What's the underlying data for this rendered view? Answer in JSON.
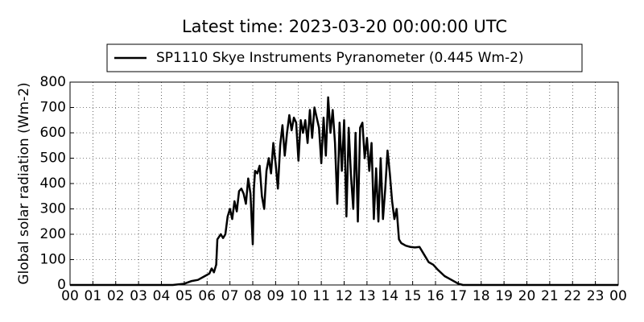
{
  "chart_data": {
    "type": "line",
    "title": "Latest time: 2023-03-20 00:00:00 UTC",
    "y_label": "Global solar radiation (Wm-2)",
    "x": [
      0,
      4.5,
      5,
      5.3,
      5.6,
      5.9,
      6.1,
      6.2,
      6.3,
      6.4,
      6.45,
      6.6,
      6.7,
      6.8,
      6.9,
      7.0,
      7.1,
      7.2,
      7.3,
      7.4,
      7.5,
      7.6,
      7.7,
      7.8,
      7.9,
      8.0,
      8.05,
      8.1,
      8.2,
      8.3,
      8.4,
      8.5,
      8.6,
      8.7,
      8.8,
      8.9,
      9.0,
      9.1,
      9.2,
      9.3,
      9.4,
      9.5,
      9.6,
      9.7,
      9.8,
      9.9,
      10.0,
      10.1,
      10.2,
      10.3,
      10.4,
      10.5,
      10.6,
      10.7,
      10.8,
      10.9,
      11.0,
      11.1,
      11.2,
      11.3,
      11.4,
      11.5,
      11.6,
      11.7,
      11.8,
      11.9,
      12.0,
      12.1,
      12.2,
      12.3,
      12.4,
      12.5,
      12.6,
      12.7,
      12.8,
      12.9,
      13.0,
      13.1,
      13.2,
      13.3,
      13.4,
      13.5,
      13.6,
      13.7,
      13.8,
      13.9,
      14.0,
      14.1,
      14.2,
      14.3,
      14.4,
      14.5,
      14.7,
      14.9,
      15.1,
      15.3,
      15.5,
      15.7,
      15.9,
      16.1,
      16.4,
      16.7,
      17.0,
      17.2,
      24
    ],
    "series": [
      {
        "name": "SP1110 Skye Instruments Pyranometer (0.445 Wm-2)",
        "color": "#000000",
        "values": [
          0,
          0,
          5,
          15,
          20,
          35,
          45,
          65,
          50,
          80,
          180,
          200,
          185,
          200,
          270,
          300,
          260,
          330,
          290,
          370,
          380,
          360,
          320,
          420,
          360,
          160,
          380,
          450,
          440,
          470,
          350,
          300,
          450,
          500,
          440,
          560,
          480,
          380,
          550,
          630,
          510,
          600,
          670,
          610,
          660,
          640,
          490,
          650,
          600,
          650,
          560,
          690,
          580,
          700,
          660,
          620,
          480,
          660,
          510,
          740,
          600,
          690,
          560,
          320,
          640,
          450,
          650,
          270,
          620,
          430,
          300,
          600,
          250,
          620,
          640,
          500,
          580,
          450,
          560,
          260,
          460,
          250,
          500,
          260,
          380,
          530,
          440,
          330,
          260,
          300,
          180,
          165,
          155,
          150,
          148,
          150,
          120,
          90,
          80,
          60,
          35,
          20,
          5,
          0,
          0
        ]
      }
    ],
    "xlim": [
      0,
      24
    ],
    "xticks": [
      {
        "value": 0,
        "label": "00"
      },
      {
        "value": 1,
        "label": "01"
      },
      {
        "value": 2,
        "label": "02"
      },
      {
        "value": 3,
        "label": "03"
      },
      {
        "value": 4,
        "label": "04"
      },
      {
        "value": 5,
        "label": "05"
      },
      {
        "value": 6,
        "label": "06"
      },
      {
        "value": 7,
        "label": "07"
      },
      {
        "value": 8,
        "label": "08"
      },
      {
        "value": 9,
        "label": "09"
      },
      {
        "value": 10,
        "label": "10"
      },
      {
        "value": 11,
        "label": "11"
      },
      {
        "value": 12,
        "label": "12"
      },
      {
        "value": 13,
        "label": "13"
      },
      {
        "value": 14,
        "label": "14"
      },
      {
        "value": 15,
        "label": "15"
      },
      {
        "value": 16,
        "label": "16"
      },
      {
        "value": 17,
        "label": "17"
      },
      {
        "value": 18,
        "label": "18"
      },
      {
        "value": 19,
        "label": "19"
      },
      {
        "value": 20,
        "label": "20"
      },
      {
        "value": 21,
        "label": "21"
      },
      {
        "value": 22,
        "label": "22"
      },
      {
        "value": 23,
        "label": "23"
      },
      {
        "value": 24,
        "label": "00"
      }
    ],
    "ylim": [
      0,
      800
    ],
    "yticks": [
      0,
      100,
      200,
      300,
      400,
      500,
      600,
      700,
      800
    ],
    "grid": true,
    "legend": "top"
  }
}
